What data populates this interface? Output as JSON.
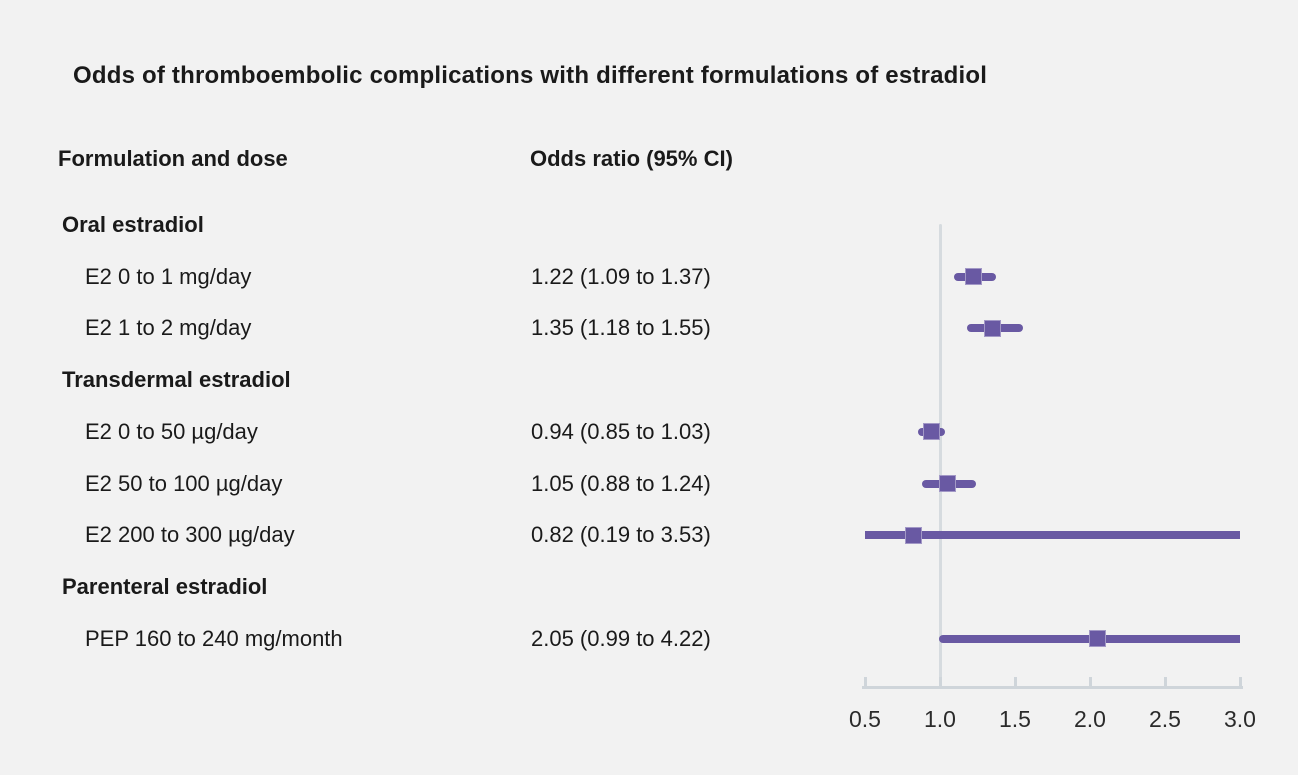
{
  "title": "Odds of thromboembolic complications with different formulations of estradiol",
  "columns": {
    "formulation": "Formulation and dose",
    "odds_ratio": "Odds ratio (95% CI)"
  },
  "colors": {
    "background": "#f2f2f2",
    "marker_purple": "#6959a3",
    "reference_line": "#d6dbdf",
    "axis_line": "#cfd5da",
    "text": "#1a1a1a"
  },
  "chart_data": {
    "type": "forest",
    "title": "Odds of thromboembolic complications with different formulations of estradiol",
    "xlabel": "Odds ratio (95% CI)",
    "x_axis": {
      "min": 0.5,
      "max": 3.0,
      "ticks": [
        0.5,
        1.0,
        1.5,
        2.0,
        2.5,
        3.0
      ],
      "tick_labels": [
        "0.5",
        "1.0",
        "1.5",
        "2.0",
        "2.5",
        "3.0"
      ],
      "reference_line": 1.0
    },
    "rows": [
      {
        "kind": "group",
        "label": "Oral estradiol"
      },
      {
        "kind": "item",
        "label": "E2 0 to 1 mg/day",
        "display": "1.22 (1.09 to 1.37)",
        "or": 1.22,
        "ci_low": 1.09,
        "ci_high": 1.37
      },
      {
        "kind": "item",
        "label": "E2 1 to 2 mg/day",
        "display": "1.35 (1.18 to 1.55)",
        "or": 1.35,
        "ci_low": 1.18,
        "ci_high": 1.55
      },
      {
        "kind": "group",
        "label": "Transdermal estradiol"
      },
      {
        "kind": "item",
        "label": "E2 0 to 50 µg/day",
        "display": "0.94 (0.85 to 1.03)",
        "or": 0.94,
        "ci_low": 0.85,
        "ci_high": 1.03
      },
      {
        "kind": "item",
        "label": "E2 50 to 100 µg/day",
        "display": "1.05 (0.88 to 1.24)",
        "or": 1.05,
        "ci_low": 0.88,
        "ci_high": 1.24
      },
      {
        "kind": "item",
        "label": "E2 200 to 300 µg/day",
        "display": "0.82 (0.19 to 3.53)",
        "or": 0.82,
        "ci_low": 0.19,
        "ci_high": 3.53
      },
      {
        "kind": "group",
        "label": "Parenteral estradiol"
      },
      {
        "kind": "item",
        "label": "PEP 160 to 240 mg/month",
        "display": "2.05 (0.99 to 4.22)",
        "or": 2.05,
        "ci_low": 0.99,
        "ci_high": 4.22
      }
    ]
  }
}
